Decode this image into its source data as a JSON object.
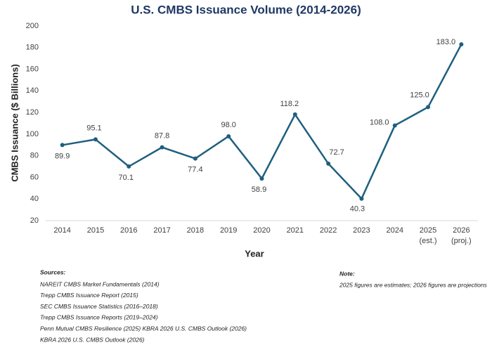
{
  "chart_data": {
    "type": "line",
    "title": "U.S. CMBS Issuance Volume (2014-2026)",
    "x_label": "Year",
    "y_label": "CMBS Issuance ($ Billions)",
    "categories": [
      "2014",
      "2015",
      "2016",
      "2017",
      "2018",
      "2019",
      "2020",
      "2021",
      "2022",
      "2023",
      "2024",
      "2025 (est.)",
      "2026 (proj.)"
    ],
    "series": [
      {
        "name": "CMBS Issuance",
        "color": "#1f5f7f",
        "values": [
          89.9,
          95.1,
          70.1,
          87.8,
          77.4,
          98.0,
          58.9,
          118.2,
          72.7,
          40.3,
          108.0,
          125.0,
          183.0
        ],
        "value_labels": [
          "89.9",
          "95.1",
          "70.1",
          "87.8",
          "77.4",
          "98.0",
          "58.9",
          "118.2",
          "72.7",
          "40.3",
          "108.0",
          "125.0",
          "183.0"
        ]
      }
    ],
    "ylim": [
      20,
      200
    ],
    "yticks": [
      20,
      40,
      60,
      80,
      100,
      120,
      140,
      160,
      180,
      200
    ],
    "grid": false,
    "sources_title": "Sources:",
    "sources": [
      "NAREIT CMBS Market Fundamentals (2014)",
      "Trepp CMBS Issuance Report (2015)",
      "SEC CMBS Issuance Statistics (2016–2018)",
      "Trepp CMBS Issuance Reports (2019–2024)",
      "Penn Mutual CMBS Resilience (2025) KBRA 2026 U.S. CMBS Outlook (2026)",
      "KBRA 2026 U.S. CMBS Outlook (2026)"
    ],
    "note_title": "Note:",
    "note": "2025 figures are estimates; 2026 figures are projections"
  }
}
